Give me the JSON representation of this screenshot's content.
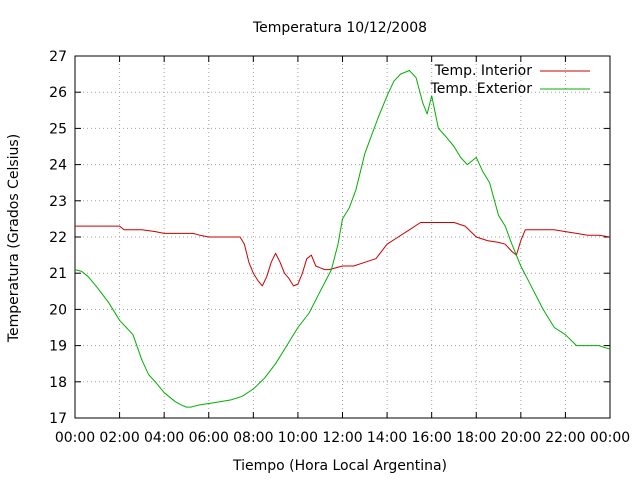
{
  "chart_data": {
    "type": "line",
    "title": "Temperatura 10/12/2008",
    "xlabel": "Tiempo (Hora Local Argentina)",
    "ylabel": "Temperatura (Grados Celsius)",
    "xlim": [
      0,
      24
    ],
    "ylim": [
      17,
      27
    ],
    "x_tick_labels": [
      "00:00",
      "02:00",
      "04:00",
      "06:00",
      "08:00",
      "10:00",
      "12:00",
      "14:00",
      "16:00",
      "18:00",
      "20:00",
      "22:00",
      "00:00"
    ],
    "y_ticks": [
      17,
      18,
      19,
      20,
      21,
      22,
      23,
      24,
      25,
      26,
      27
    ],
    "grid": true,
    "legend_position": "top-right",
    "series": [
      {
        "name": "Temp. Interior",
        "color": "#cc0000",
        "x": [
          0,
          1,
          2,
          2.2,
          3,
          3.6,
          4,
          4.8,
          5.3,
          5.6,
          6,
          7,
          7.4,
          7.6,
          7.8,
          8,
          8.2,
          8.4,
          8.6,
          8.8,
          9,
          9.2,
          9.4,
          9.6,
          9.8,
          10,
          10.2,
          10.4,
          10.6,
          10.8,
          11,
          11.2,
          11.4,
          12,
          12.5,
          13,
          13.5,
          14,
          14.5,
          15,
          15.5,
          16,
          16.5,
          17,
          17.5,
          18,
          18.5,
          19,
          19.3,
          19.6,
          19.8,
          20,
          20.2,
          20.5,
          21,
          21.5,
          22,
          22.5,
          23,
          23.5,
          24
        ],
        "values": [
          22.3,
          22.3,
          22.3,
          22.2,
          22.2,
          22.15,
          22.1,
          22.1,
          22.1,
          22.05,
          22.0,
          22.0,
          22.0,
          21.8,
          21.3,
          21.0,
          20.8,
          20.65,
          20.9,
          21.3,
          21.55,
          21.3,
          21.0,
          20.85,
          20.65,
          20.7,
          21.0,
          21.4,
          21.5,
          21.2,
          21.15,
          21.1,
          21.1,
          21.2,
          21.2,
          21.3,
          21.4,
          21.8,
          22.0,
          22.2,
          22.4,
          22.4,
          22.4,
          22.4,
          22.3,
          22.0,
          21.9,
          21.85,
          21.8,
          21.6,
          21.5,
          21.9,
          22.2,
          22.2,
          22.2,
          22.2,
          22.15,
          22.1,
          22.05,
          22.05,
          22.0
        ]
      },
      {
        "name": "Temp. Exterior",
        "color": "#00b000",
        "x": [
          0,
          0.3,
          0.6,
          1,
          1.5,
          2,
          2.3,
          2.6,
          3,
          3.3,
          3.6,
          4,
          4.5,
          4.8,
          5,
          5.2,
          5.5,
          6,
          6.5,
          7,
          7.5,
          8,
          8.5,
          9,
          9.5,
          10,
          10.5,
          11,
          11.5,
          11.8,
          12,
          12.3,
          12.6,
          13,
          13.3,
          13.6,
          14,
          14.3,
          14.6,
          15,
          15.3,
          15.6,
          15.8,
          16,
          16.3,
          16.6,
          17,
          17.3,
          17.6,
          18,
          18.3,
          18.6,
          19,
          19.3,
          19.6,
          20,
          20.5,
          21,
          21.5,
          22,
          22.5,
          23,
          23.5,
          24
        ],
        "values": [
          21.1,
          21.05,
          20.9,
          20.6,
          20.2,
          19.7,
          19.5,
          19.3,
          18.6,
          18.2,
          18.0,
          17.7,
          17.45,
          17.35,
          17.3,
          17.3,
          17.35,
          17.4,
          17.45,
          17.5,
          17.6,
          17.8,
          18.1,
          18.5,
          19.0,
          19.5,
          19.9,
          20.5,
          21.1,
          21.8,
          22.5,
          22.8,
          23.3,
          24.3,
          24.8,
          25.3,
          25.9,
          26.3,
          26.5,
          26.6,
          26.4,
          25.7,
          25.4,
          25.9,
          25.0,
          24.8,
          24.5,
          24.2,
          24.0,
          24.2,
          23.8,
          23.5,
          22.6,
          22.3,
          21.8,
          21.2,
          20.6,
          20.0,
          19.5,
          19.3,
          19.0,
          19.0,
          19.0,
          18.9
        ]
      }
    ]
  }
}
